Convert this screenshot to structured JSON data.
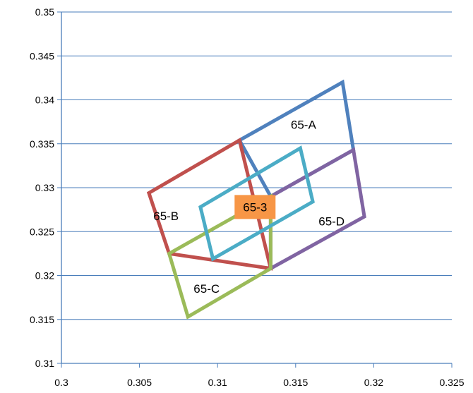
{
  "chart_data": {
    "type": "line",
    "title": "",
    "xlabel": "",
    "ylabel": "",
    "xlim": [
      0.3,
      0.325
    ],
    "ylim": [
      0.31,
      0.35
    ],
    "x_ticks": [
      "0.3",
      "0.305",
      "0.31",
      "0.315",
      "0.32",
      "0.325"
    ],
    "y_ticks": [
      "0.31",
      "0.315",
      "0.32",
      "0.325",
      "0.33",
      "0.335",
      "0.34",
      "0.345",
      "0.35"
    ],
    "grid": "horizontal",
    "legend": "none",
    "series": [
      {
        "name": "65-A",
        "color": "#4F81BD",
        "points": [
          [
            0.3114,
            0.3354
          ],
          [
            0.318,
            0.342
          ],
          [
            0.3187,
            0.3343
          ],
          [
            0.3134,
            0.329
          ]
        ]
      },
      {
        "name": "65-B",
        "color": "#C0504D",
        "points": [
          [
            0.3056,
            0.3294
          ],
          [
            0.3114,
            0.3354
          ],
          [
            0.3134,
            0.3208
          ],
          [
            0.3069,
            0.3225
          ]
        ]
      },
      {
        "name": "65-D",
        "color": "#8064A2",
        "points": [
          [
            0.3134,
            0.329
          ],
          [
            0.3187,
            0.3343
          ],
          [
            0.3194,
            0.3267
          ],
          [
            0.3134,
            0.3208
          ]
        ]
      },
      {
        "name": "65-C",
        "color": "#9BBB59",
        "points": [
          [
            0.3069,
            0.3225
          ],
          [
            0.3134,
            0.329
          ],
          [
            0.3134,
            0.3208
          ],
          [
            0.3081,
            0.3153
          ]
        ]
      },
      {
        "name": "65-3",
        "color": "#4BACC6",
        "points": [
          [
            0.3089,
            0.3278
          ],
          [
            0.3153,
            0.3345
          ],
          [
            0.3161,
            0.3284
          ],
          [
            0.3097,
            0.3219
          ]
        ]
      }
    ],
    "annotations": [
      {
        "text": "65-A",
        "x": 0.3155,
        "y": 0.3372,
        "box": false
      },
      {
        "text": "65-B",
        "x": 0.3067,
        "y": 0.3268,
        "box": false
      },
      {
        "text": "65-3",
        "x": 0.3124,
        "y": 0.3278,
        "box": true,
        "fill": "#F79646"
      },
      {
        "text": "65-D",
        "x": 0.3173,
        "y": 0.3262,
        "box": false
      },
      {
        "text": "65-C",
        "x": 0.3093,
        "y": 0.3185,
        "box": false
      }
    ]
  }
}
